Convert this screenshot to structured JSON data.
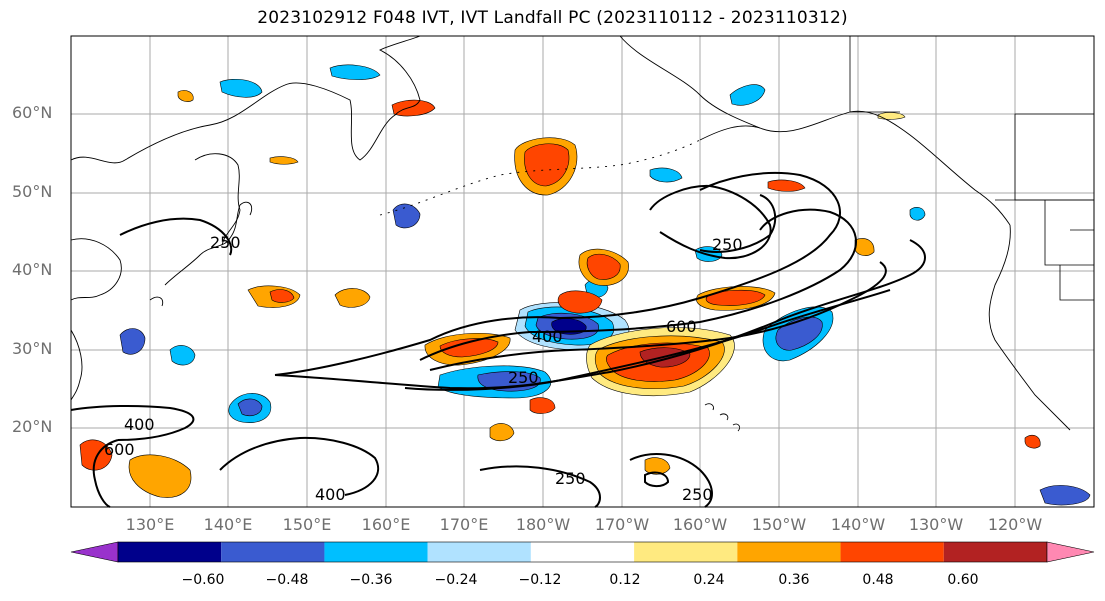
{
  "title": "2023102912 F048 IVT, IVT Landfall PC (2023110112 - 2023110312)",
  "latitude_labels": [
    "60°N",
    "50°N",
    "40°N",
    "30°N",
    "20°N"
  ],
  "longitude_labels": [
    "130°E",
    "140°E",
    "150°E",
    "160°E",
    "170°E",
    "180°W",
    "170°W",
    "160°W",
    "150°W",
    "140°W",
    "130°W",
    "120°W"
  ],
  "contour_labels": [
    "250",
    "250",
    "400",
    "600",
    "250",
    "400",
    "600",
    "400",
    "250",
    "250"
  ],
  "colorbar": {
    "ticks": [
      "−0.60",
      "−0.48",
      "−0.36",
      "−0.24",
      "−0.12",
      "0.12",
      "0.24",
      "0.36",
      "0.48",
      "0.60"
    ],
    "colors": [
      "#9932cc",
      "#00008b",
      "#3a5bd0",
      "#00bfff",
      "#b0e2ff",
      "#ffffff",
      "#ffea80",
      "#ffa500",
      "#ff4500",
      "#b22222",
      "#ff88b2"
    ]
  },
  "palette": {
    "land_line": "#000000",
    "grid": "#aaaaaa",
    "contour": "#000000"
  }
}
